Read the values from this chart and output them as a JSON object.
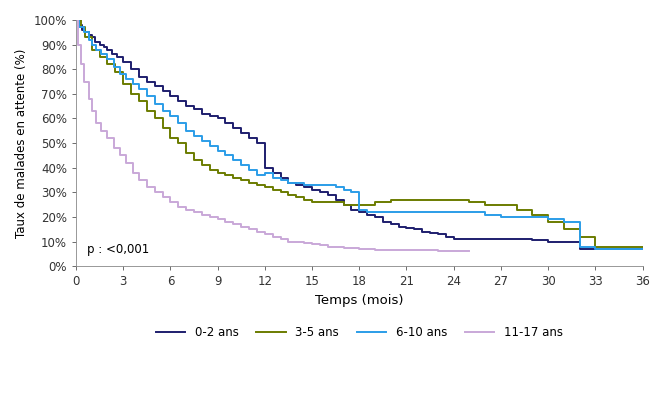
{
  "xlabel": "Temps (mois)",
  "ylabel": "Taux de malades en attente (%)",
  "p_value_text": "p : <0,001",
  "xlim": [
    0,
    36
  ],
  "ylim": [
    0,
    100
  ],
  "xticks": [
    0,
    3,
    6,
    9,
    12,
    15,
    18,
    21,
    24,
    27,
    30,
    33,
    36
  ],
  "yticks": [
    0,
    10,
    20,
    30,
    40,
    50,
    60,
    70,
    80,
    90,
    100
  ],
  "ytick_labels": [
    "0%",
    "10%",
    "20%",
    "30%",
    "40%",
    "50%",
    "60%",
    "70%",
    "80%",
    "90%",
    "100%"
  ],
  "series": [
    {
      "label": "0-2 ans",
      "color": "#1e1e6e",
      "linewidth": 1.4,
      "x": [
        0,
        0.2,
        0.4,
        0.6,
        0.8,
        1.0,
        1.2,
        1.5,
        1.8,
        2.0,
        2.3,
        2.6,
        3.0,
        3.5,
        4.0,
        4.5,
        5.0,
        5.5,
        6.0,
        6.5,
        7.0,
        7.5,
        8.0,
        8.5,
        9.0,
        9.5,
        10.0,
        10.5,
        11.0,
        11.5,
        12.0,
        12.5,
        13.0,
        13.5,
        14.0,
        14.5,
        15.0,
        15.5,
        16.0,
        16.5,
        17.0,
        17.5,
        18.0,
        18.5,
        19.0,
        19.5,
        20.0,
        20.5,
        21.0,
        21.5,
        22.0,
        22.5,
        23.0,
        23.5,
        24.0,
        25.0,
        26.0,
        27.0,
        28.0,
        29.0,
        30.0,
        31.0,
        32.0,
        33.0,
        36.0
      ],
      "y": [
        100,
        98,
        96,
        95,
        94,
        93,
        91,
        90,
        89,
        88,
        86,
        85,
        83,
        80,
        77,
        75,
        73,
        71,
        69,
        67,
        65,
        64,
        62,
        61,
        60,
        58,
        56,
        54,
        52,
        50,
        40,
        38,
        36,
        34,
        33,
        32,
        31,
        30,
        29,
        27,
        25,
        23,
        22,
        21,
        20,
        18,
        17,
        16,
        15.5,
        15,
        14,
        13.5,
        13,
        12,
        11,
        11,
        11,
        11,
        11,
        10.5,
        10,
        10,
        7,
        7,
        7
      ]
    },
    {
      "label": "3-5 ans",
      "color": "#6b7c00",
      "linewidth": 1.4,
      "x": [
        0,
        0.3,
        0.6,
        1.0,
        1.5,
        2.0,
        2.5,
        3.0,
        3.5,
        4.0,
        4.5,
        5.0,
        5.5,
        6.0,
        6.5,
        7.0,
        7.5,
        8.0,
        8.5,
        9.0,
        9.5,
        10.0,
        10.5,
        11.0,
        11.5,
        12.0,
        12.5,
        13.0,
        13.5,
        14.0,
        14.5,
        15.0,
        15.5,
        16.0,
        16.5,
        17.0,
        17.5,
        18.0,
        19.0,
        20.0,
        21.0,
        22.0,
        23.0,
        24.0,
        24.5,
        25.0,
        26.0,
        27.0,
        28.0,
        29.0,
        30.0,
        31.0,
        32.0,
        33.0,
        36.0
      ],
      "y": [
        100,
        97,
        93,
        88,
        85,
        82,
        79,
        74,
        70,
        67,
        63,
        60,
        56,
        52,
        50,
        46,
        43,
        41,
        39,
        38,
        37,
        36,
        35,
        34,
        33,
        32,
        31,
        30,
        29,
        28,
        27,
        26,
        26,
        26,
        26,
        25,
        25,
        25,
        26,
        27,
        27,
        27,
        27,
        27,
        27,
        26,
        25,
        25,
        23,
        21,
        18,
        15,
        12,
        8,
        8
      ]
    },
    {
      "label": "6-10 ans",
      "color": "#2b9de8",
      "linewidth": 1.4,
      "x": [
        0,
        0.2,
        0.5,
        0.8,
        1.0,
        1.3,
        1.6,
        2.0,
        2.4,
        2.8,
        3.2,
        3.6,
        4.0,
        4.5,
        5.0,
        5.5,
        6.0,
        6.5,
        7.0,
        7.5,
        8.0,
        8.5,
        9.0,
        9.5,
        10.0,
        10.5,
        11.0,
        11.5,
        12.0,
        12.5,
        13.0,
        13.5,
        14.0,
        14.5,
        15.0,
        15.5,
        16.0,
        16.5,
        17.0,
        17.5,
        18.0,
        18.5,
        19.0,
        19.5,
        20.0,
        21.0,
        22.0,
        23.0,
        24.0,
        25.0,
        26.0,
        27.0,
        28.0,
        29.0,
        30.0,
        31.0,
        32.0,
        33.0,
        36.0
      ],
      "y": [
        100,
        97,
        95,
        92,
        90,
        88,
        86,
        84,
        81,
        78,
        76,
        74,
        72,
        69,
        66,
        63,
        61,
        58,
        55,
        53,
        51,
        49,
        47,
        45,
        43,
        41,
        39,
        37,
        38,
        36,
        35,
        34,
        34,
        33,
        33,
        33,
        33,
        32,
        31,
        30,
        23,
        22,
        22,
        22,
        22,
        22,
        22,
        22,
        22,
        22,
        21,
        20,
        20,
        20,
        19,
        18,
        8,
        7,
        7
      ]
    },
    {
      "label": "11-17 ans",
      "color": "#c9a8d8",
      "linewidth": 1.4,
      "x": [
        0,
        0.15,
        0.3,
        0.5,
        0.8,
        1.0,
        1.3,
        1.6,
        2.0,
        2.4,
        2.8,
        3.2,
        3.6,
        4.0,
        4.5,
        5.0,
        5.5,
        6.0,
        6.5,
        7.0,
        7.5,
        8.0,
        8.5,
        9.0,
        9.5,
        10.0,
        10.5,
        11.0,
        11.5,
        12.0,
        12.5,
        13.0,
        13.5,
        14.0,
        14.5,
        15.0,
        15.5,
        16.0,
        16.5,
        17.0,
        17.5,
        18.0,
        18.5,
        19.0,
        20.0,
        21.0,
        22.0,
        23.0,
        24.0,
        25.0
      ],
      "y": [
        100,
        90,
        82,
        75,
        68,
        63,
        58,
        55,
        52,
        48,
        45,
        42,
        38,
        35,
        32,
        30,
        28,
        26,
        24,
        23,
        22,
        21,
        20,
        19,
        18,
        17,
        16,
        15,
        14,
        13,
        12,
        11,
        10,
        10,
        9.5,
        9,
        8.5,
        8,
        8,
        7.5,
        7.5,
        7,
        7,
        6.5,
        6.5,
        6.5,
        6.5,
        6,
        6,
        6
      ]
    }
  ],
  "legend_ncol": 4,
  "background_color": "#ffffff",
  "figsize": [
    6.65,
    4.15
  ],
  "dpi": 100
}
